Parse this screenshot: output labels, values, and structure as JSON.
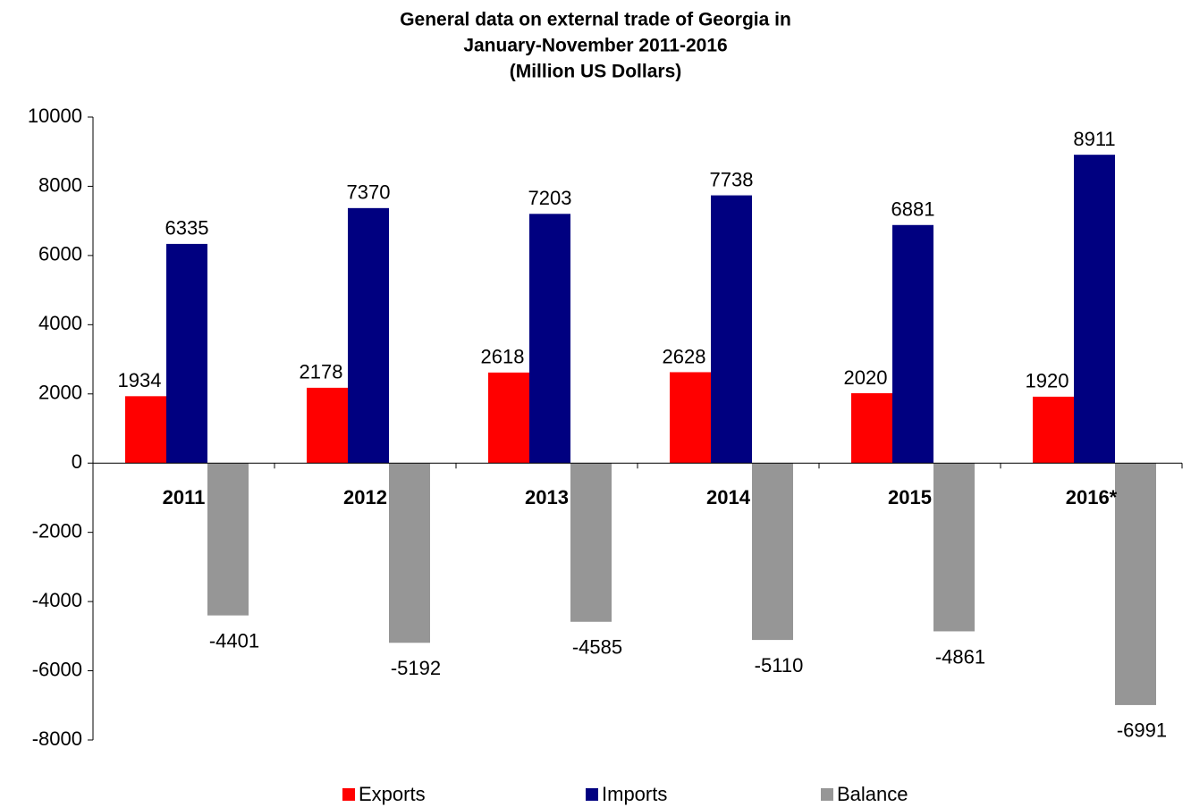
{
  "chart_data": {
    "type": "bar",
    "title": [
      "General data on external trade of Georgia in",
      "January-November 2011-2016",
      "(Million US Dollars)"
    ],
    "categories": [
      "2011",
      "2012",
      "2013",
      "2014",
      "2015",
      "2016*"
    ],
    "series": [
      {
        "name": "Exports",
        "color": "#ff0000",
        "values": [
          1934,
          2178,
          2618,
          2628,
          2020,
          1920
        ]
      },
      {
        "name": "Imports",
        "color": "#000080",
        "values": [
          6335,
          7370,
          7203,
          7738,
          6881,
          8911
        ]
      },
      {
        "name": "Balance",
        "color": "#969696",
        "values": [
          -4401,
          -5192,
          -4585,
          -5110,
          -4861,
          -6991
        ]
      }
    ],
    "ylim": [
      -8000,
      10000
    ],
    "yticks": [
      -8000,
      -6000,
      -4000,
      -2000,
      0,
      2000,
      4000,
      6000,
      8000,
      10000
    ],
    "grid": false,
    "legend": "bottom"
  }
}
